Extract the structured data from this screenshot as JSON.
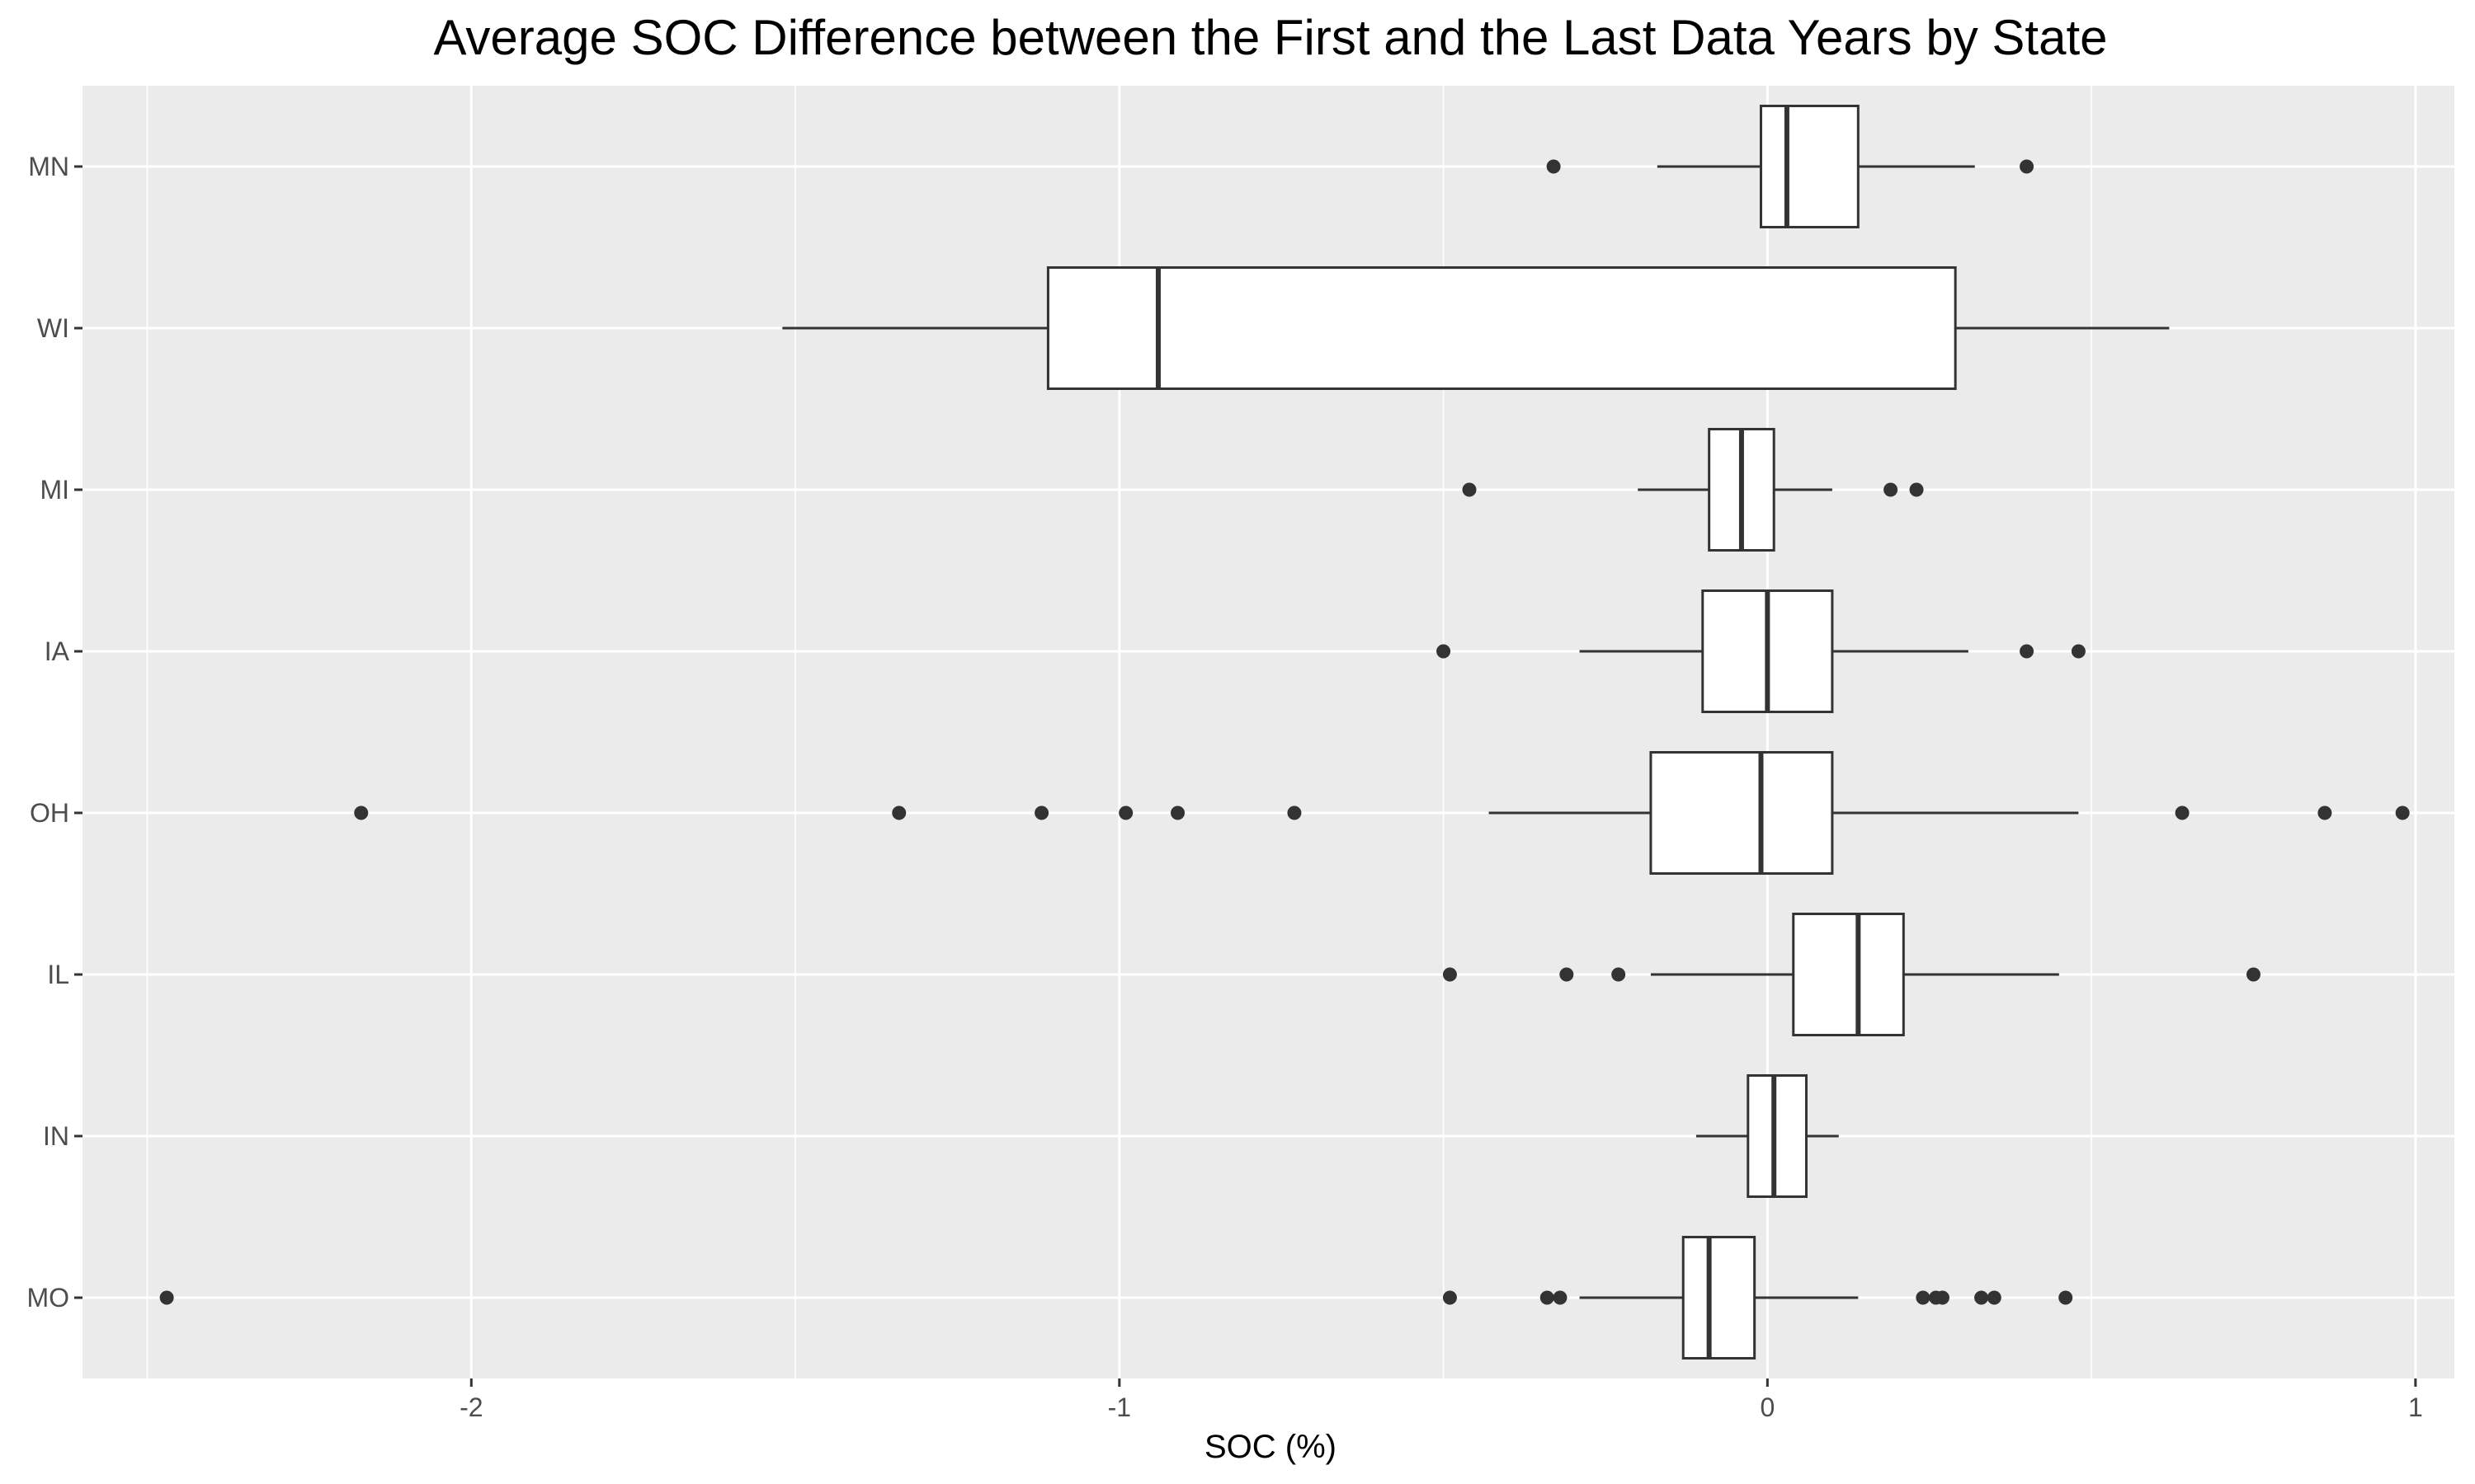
{
  "chart_data": {
    "type": "boxplot",
    "orientation": "horizontal",
    "title": "Average SOC Difference between the First and the Last Data Years by State",
    "xlabel": "SOC (%)",
    "ylabel": "",
    "xlim": [
      -2.6,
      1.06
    ],
    "x_ticks": [
      -2,
      -1,
      0,
      1
    ],
    "x_tick_labels": [
      "-2",
      "-1",
      "0",
      "1"
    ],
    "grid": true,
    "legend": "none",
    "colors": {
      "panel_background": "#ebebeb",
      "grid_major": "#ffffff",
      "box_fill": "#ffffff",
      "box_stroke": "#333333",
      "outlier": "#333333"
    },
    "categories": [
      "MN",
      "WI",
      "MI",
      "IA",
      "OH",
      "IL",
      "IN",
      "MO"
    ],
    "boxes": [
      {
        "category": "MN",
        "whisker_low": -0.17,
        "q1": -0.01,
        "median": 0.03,
        "q3": 0.14,
        "whisker_high": 0.32,
        "outliers": [
          -0.33,
          0.4
        ]
      },
      {
        "category": "WI",
        "whisker_low": -1.52,
        "q1": -1.11,
        "median": -0.94,
        "q3": 0.29,
        "whisker_high": 0.62,
        "outliers": []
      },
      {
        "category": "MI",
        "whisker_low": -0.2,
        "q1": -0.09,
        "median": -0.04,
        "q3": 0.01,
        "whisker_high": 0.1,
        "outliers": [
          -0.46,
          0.19,
          0.23
        ]
      },
      {
        "category": "IA",
        "whisker_low": -0.29,
        "q1": -0.1,
        "median": 0.0,
        "q3": 0.1,
        "whisker_high": 0.31,
        "outliers": [
          -0.5,
          0.4,
          0.48
        ]
      },
      {
        "category": "OH",
        "whisker_low": -0.43,
        "q1": -0.18,
        "median": -0.01,
        "q3": 0.1,
        "whisker_high": 0.48,
        "outliers": [
          -2.17,
          -1.34,
          -1.12,
          -0.99,
          -0.91,
          -0.73,
          0.64,
          0.86,
          0.98
        ]
      },
      {
        "category": "IL",
        "whisker_low": -0.18,
        "q1": 0.04,
        "median": 0.14,
        "q3": 0.21,
        "whisker_high": 0.45,
        "outliers": [
          -0.49,
          -0.31,
          -0.23,
          0.75
        ]
      },
      {
        "category": "IN",
        "whisker_low": -0.11,
        "q1": -0.03,
        "median": 0.01,
        "q3": 0.06,
        "whisker_high": 0.11,
        "outliers": []
      },
      {
        "category": "MO",
        "whisker_low": -0.29,
        "q1": -0.13,
        "median": -0.09,
        "q3": -0.02,
        "whisker_high": 0.14,
        "outliers": [
          -2.47,
          -0.49,
          -0.34,
          -0.32,
          0.24,
          0.26,
          0.27,
          0.33,
          0.35,
          0.46
        ]
      }
    ]
  }
}
